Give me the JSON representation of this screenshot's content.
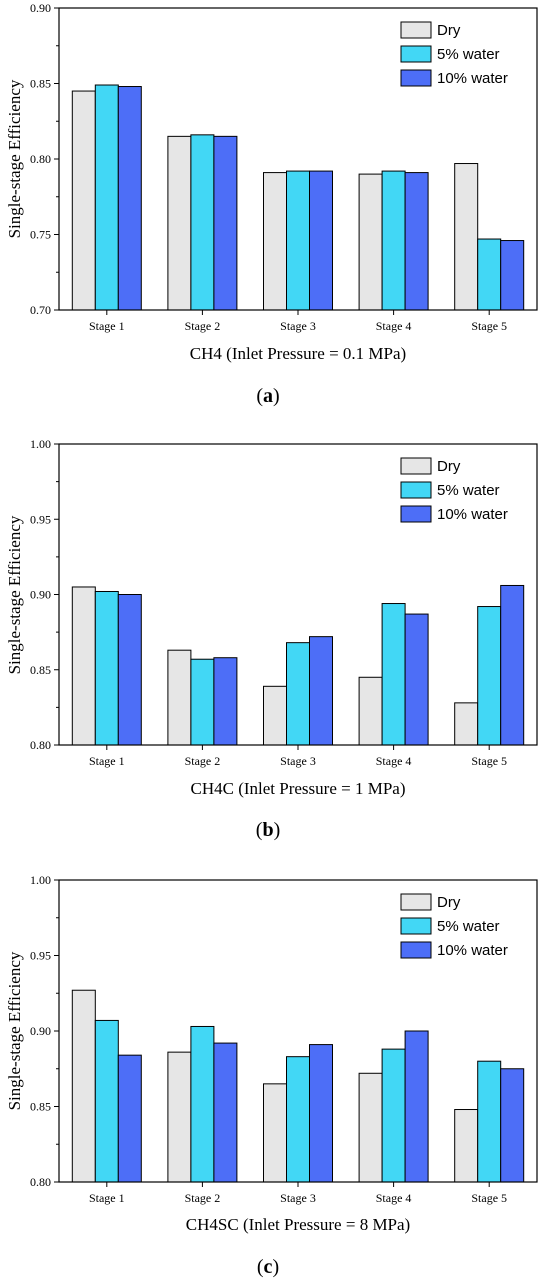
{
  "colors": {
    "Dry": "#e6e6e6",
    "5% water": "#42d7f5",
    "10% water": "#4d6ef7"
  },
  "chart_data": [
    {
      "type": "bar",
      "panel_label": "a",
      "categories": [
        "Stage 1",
        "Stage 2",
        "Stage 3",
        "Stage 4",
        "Stage 5"
      ],
      "series": [
        {
          "name": "Dry",
          "values": [
            0.845,
            0.815,
            0.791,
            0.79,
            0.797
          ]
        },
        {
          "name": "5% water",
          "values": [
            0.849,
            0.816,
            0.792,
            0.792,
            0.747
          ]
        },
        {
          "name": "10% water",
          "values": [
            0.848,
            0.815,
            0.792,
            0.791,
            0.746
          ]
        }
      ],
      "ylabel": "Single-stage Efficiency",
      "xlabel": "CH4 (Inlet Pressure = 0.1 MPa)",
      "ylim": [
        0.7,
        0.9
      ],
      "yticks": [
        "0.70",
        "0.75",
        "0.80",
        "0.85",
        "0.90"
      ],
      "legend": "top-right",
      "grid": false
    },
    {
      "type": "bar",
      "panel_label": "b",
      "categories": [
        "Stage 1",
        "Stage 2",
        "Stage 3",
        "Stage 4",
        "Stage 5"
      ],
      "series": [
        {
          "name": "Dry",
          "values": [
            0.905,
            0.863,
            0.839,
            0.845,
            0.828
          ]
        },
        {
          "name": "5% water",
          "values": [
            0.902,
            0.857,
            0.868,
            0.894,
            0.892
          ]
        },
        {
          "name": "10% water",
          "values": [
            0.9,
            0.858,
            0.872,
            0.887,
            0.906
          ]
        }
      ],
      "ylabel": "Single-stage Efficiency",
      "xlabel": "CH4C (Inlet Pressure = 1 MPa)",
      "ylim": [
        0.8,
        1.0
      ],
      "yticks": [
        "0.80",
        "0.85",
        "0.90",
        "0.95",
        "1.00"
      ],
      "legend": "top-right",
      "grid": false
    },
    {
      "type": "bar",
      "panel_label": "c",
      "categories": [
        "Stage 1",
        "Stage 2",
        "Stage 3",
        "Stage 4",
        "Stage 5"
      ],
      "series": [
        {
          "name": "Dry",
          "values": [
            0.927,
            0.886,
            0.865,
            0.872,
            0.848
          ]
        },
        {
          "name": "5% water",
          "values": [
            0.907,
            0.903,
            0.883,
            0.888,
            0.88
          ]
        },
        {
          "name": "10% water",
          "values": [
            0.884,
            0.892,
            0.891,
            0.9,
            0.875
          ]
        }
      ],
      "ylabel": "Single-stage Efficiency",
      "xlabel": "CH4SC (Inlet Pressure = 8 MPa)",
      "ylim": [
        0.8,
        1.0
      ],
      "yticks": [
        "0.80",
        "0.85",
        "0.90",
        "0.95",
        "1.00"
      ],
      "legend": "top-right",
      "grid": false
    }
  ]
}
